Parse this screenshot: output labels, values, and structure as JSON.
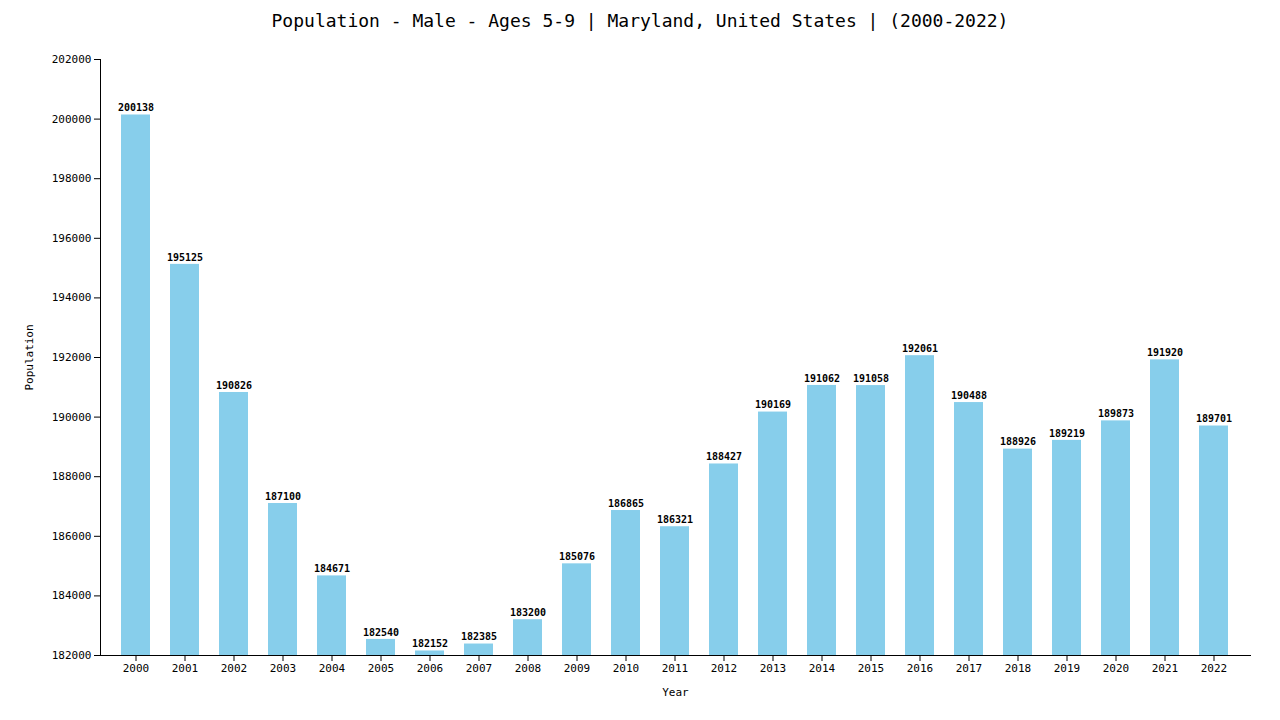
{
  "chart_data": {
    "type": "bar",
    "title": "Population - Male - Ages 5-9 | Maryland, United States |  (2000-2022)",
    "xlabel": "Year",
    "ylabel": "Population",
    "categories": [
      "2000",
      "2001",
      "2002",
      "2003",
      "2004",
      "2005",
      "2006",
      "2007",
      "2008",
      "2009",
      "2010",
      "2011",
      "2012",
      "2013",
      "2014",
      "2015",
      "2016",
      "2017",
      "2018",
      "2019",
      "2020",
      "2021",
      "2022"
    ],
    "values": [
      200138,
      195125,
      190826,
      187100,
      184671,
      182540,
      182152,
      182385,
      183200,
      185076,
      186865,
      186321,
      188427,
      190169,
      191062,
      191058,
      192061,
      190488,
      188926,
      189219,
      189873,
      191920,
      189701
    ],
    "color": "#87ceeb",
    "ylim": [
      182000,
      202000
    ],
    "yticks": [
      182000,
      184000,
      186000,
      188000,
      190000,
      192000,
      194000,
      196000,
      198000,
      200000,
      202000
    ],
    "grid": false,
    "data_labels": true
  }
}
